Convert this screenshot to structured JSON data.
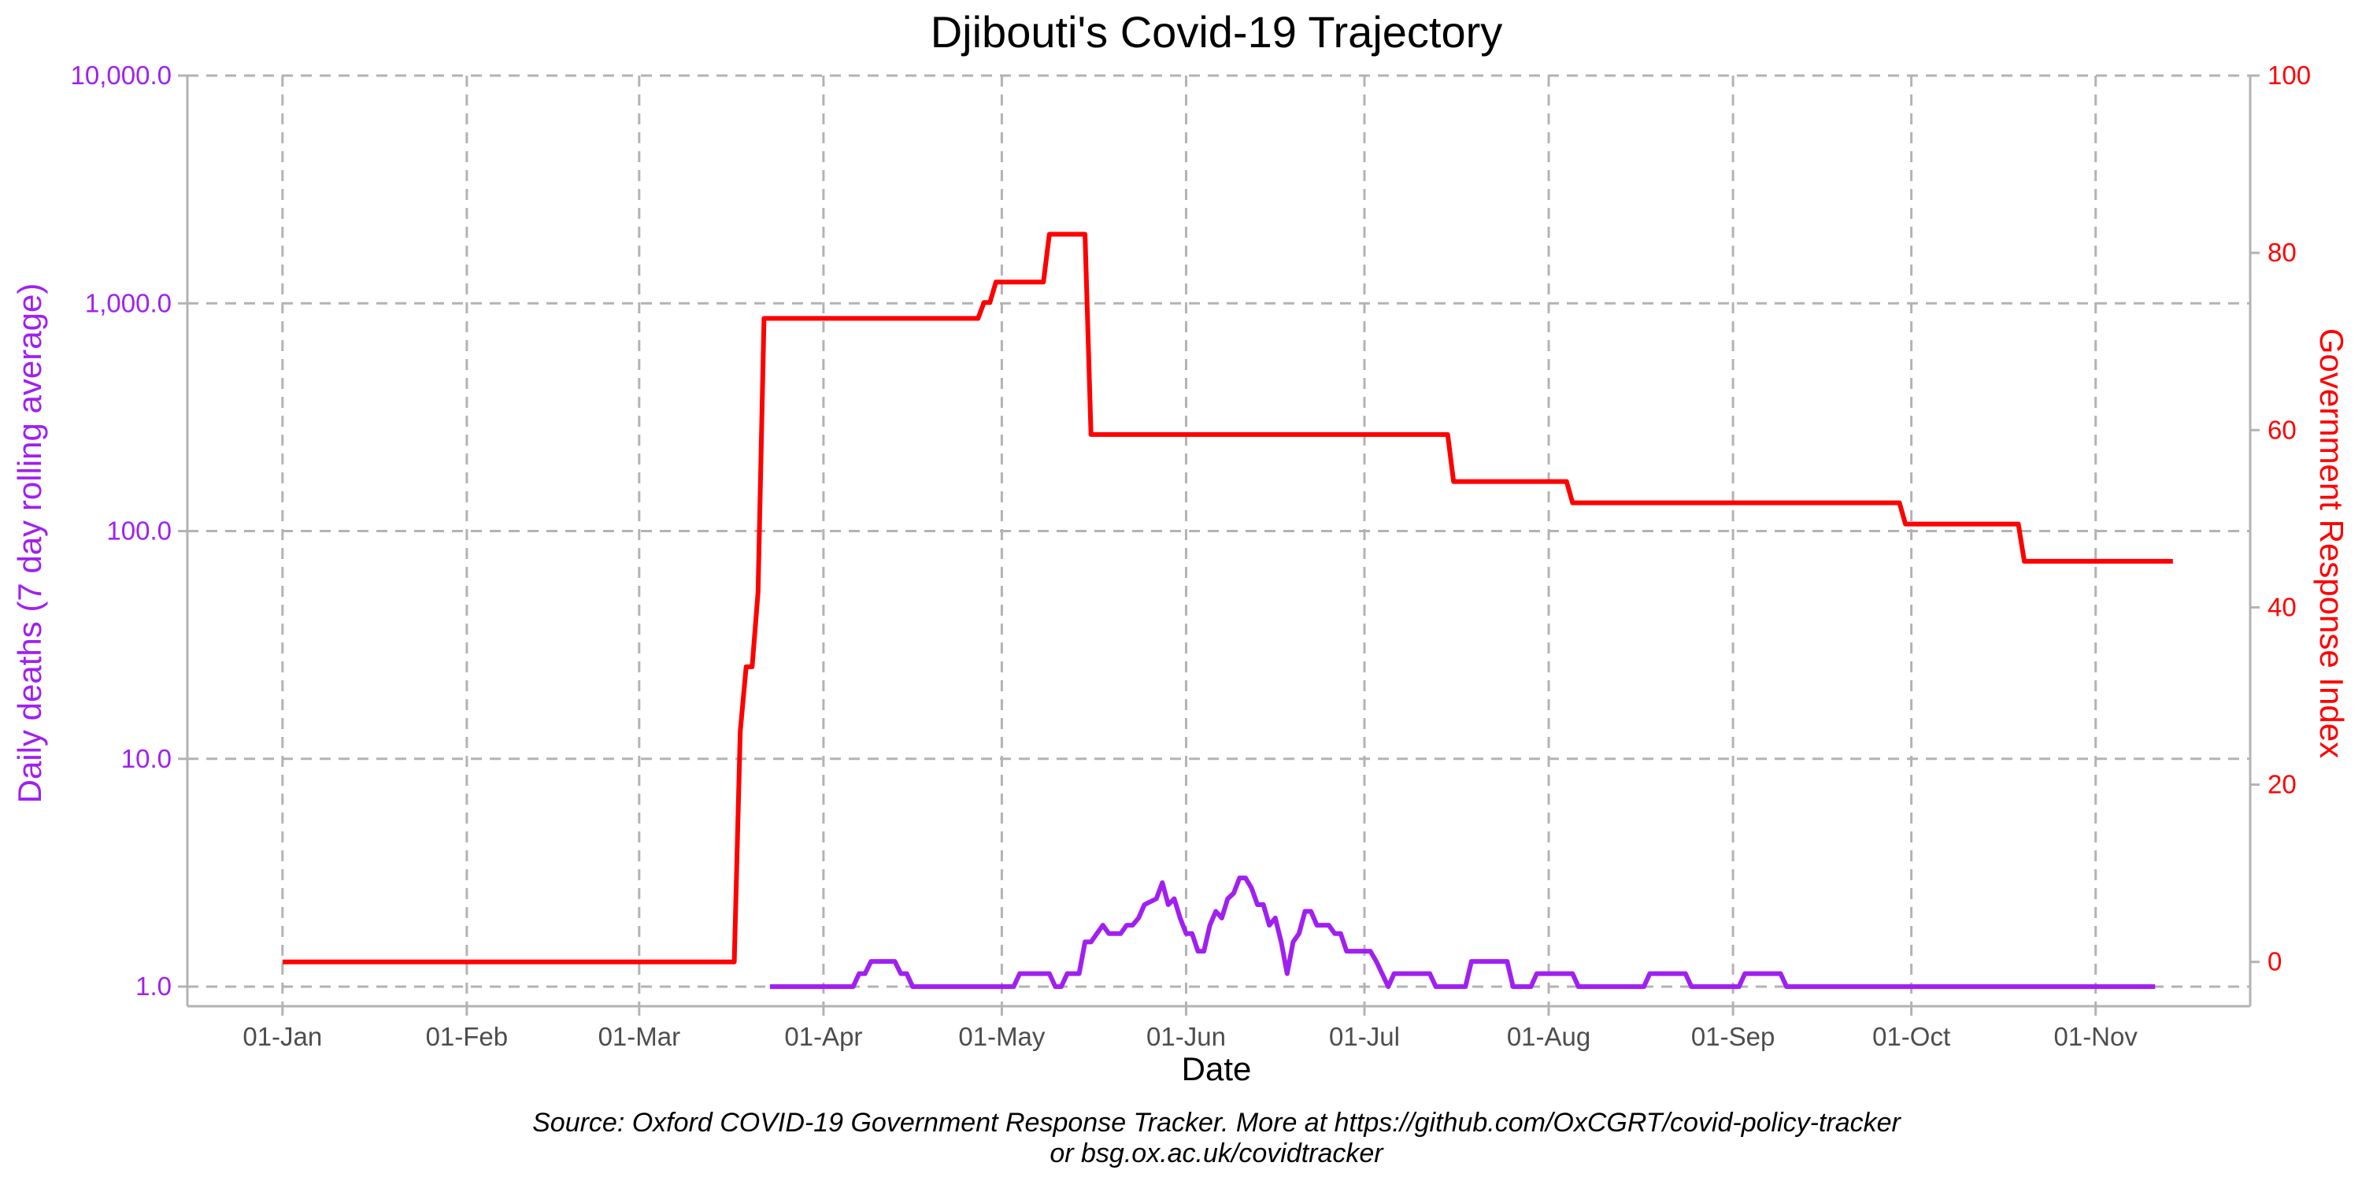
{
  "chart_data": {
    "type": "line",
    "title": "Djibouti's Covid-19 Trajectory",
    "xlabel": "Date",
    "ylabel_left": "Daily deaths (7 day rolling average)",
    "ylabel_right": "Government Response Index",
    "caption_lines": [
      "Source: Oxford COVID-19 Government Response Tracker. More at https://github.com/OxCGRT/covid-policy-tracker",
      "or bsg.ox.ac.uk/covidtracker"
    ],
    "x_ticks": [
      {
        "date": "2020-01-01",
        "label": "01-Jan"
      },
      {
        "date": "2020-02-01",
        "label": "01-Feb"
      },
      {
        "date": "2020-03-01",
        "label": "01-Mar"
      },
      {
        "date": "2020-04-01",
        "label": "01-Apr"
      },
      {
        "date": "2020-05-01",
        "label": "01-May"
      },
      {
        "date": "2020-06-01",
        "label": "01-Jun"
      },
      {
        "date": "2020-07-01",
        "label": "01-Jul"
      },
      {
        "date": "2020-08-01",
        "label": "01-Aug"
      },
      {
        "date": "2020-09-01",
        "label": "01-Sep"
      },
      {
        "date": "2020-10-01",
        "label": "01-Oct"
      },
      {
        "date": "2020-11-01",
        "label": "01-Nov"
      }
    ],
    "xlim": [
      "2019-12-16",
      "2020-11-27"
    ],
    "y_left": {
      "scale": "log10",
      "lim": [
        0.82,
        10000
      ],
      "ticks": [
        {
          "value": 1,
          "label": "1.0"
        },
        {
          "value": 10,
          "label": "10.0"
        },
        {
          "value": 100,
          "label": "100.0"
        },
        {
          "value": 1000,
          "label": "1,000.0"
        },
        {
          "value": 10000,
          "label": "10,000.0"
        }
      ]
    },
    "y_right": {
      "scale": "linear",
      "lim": [
        -5,
        100
      ],
      "ticks": [
        {
          "value": 0,
          "label": "0"
        },
        {
          "value": 20,
          "label": "20"
        },
        {
          "value": 40,
          "label": "40"
        },
        {
          "value": 60,
          "label": "60"
        },
        {
          "value": 80,
          "label": "80"
        },
        {
          "value": 100,
          "label": "100"
        }
      ]
    },
    "grid": true,
    "series": [
      {
        "key": "deaths",
        "axis": "left",
        "color": "#a020f0",
        "points": [
          [
            "2020-03-23",
            1.0
          ],
          [
            "2020-04-06",
            1.0
          ],
          [
            "2020-04-07",
            1.14
          ],
          [
            "2020-04-08",
            1.14
          ],
          [
            "2020-04-09",
            1.29
          ],
          [
            "2020-04-13",
            1.29
          ],
          [
            "2020-04-14",
            1.14
          ],
          [
            "2020-04-15",
            1.14
          ],
          [
            "2020-04-16",
            1.0
          ],
          [
            "2020-05-03",
            1.0
          ],
          [
            "2020-05-04",
            1.14
          ],
          [
            "2020-05-09",
            1.14
          ],
          [
            "2020-05-10",
            1.0
          ],
          [
            "2020-05-11",
            1.0
          ],
          [
            "2020-05-12",
            1.14
          ],
          [
            "2020-05-14",
            1.14
          ],
          [
            "2020-05-15",
            1.57
          ],
          [
            "2020-05-16",
            1.57
          ],
          [
            "2020-05-17",
            1.71
          ],
          [
            "2020-05-18",
            1.86
          ],
          [
            "2020-05-19",
            1.71
          ],
          [
            "2020-05-21",
            1.71
          ],
          [
            "2020-05-22",
            1.86
          ],
          [
            "2020-05-23",
            1.86
          ],
          [
            "2020-05-24",
            2.0
          ],
          [
            "2020-05-25",
            2.29
          ],
          [
            "2020-05-27",
            2.43
          ],
          [
            "2020-05-28",
            2.86
          ],
          [
            "2020-05-29",
            2.29
          ],
          [
            "2020-05-30",
            2.43
          ],
          [
            "2020-05-31",
            2.0
          ],
          [
            "2020-06-01",
            1.71
          ],
          [
            "2020-06-02",
            1.71
          ],
          [
            "2020-06-03",
            1.43
          ],
          [
            "2020-06-04",
            1.43
          ],
          [
            "2020-06-05",
            1.86
          ],
          [
            "2020-06-06",
            2.14
          ],
          [
            "2020-06-07",
            2.0
          ],
          [
            "2020-06-08",
            2.43
          ],
          [
            "2020-06-09",
            2.57
          ],
          [
            "2020-06-10",
            3.0
          ],
          [
            "2020-06-11",
            3.0
          ],
          [
            "2020-06-12",
            2.71
          ],
          [
            "2020-06-13",
            2.29
          ],
          [
            "2020-06-14",
            2.29
          ],
          [
            "2020-06-15",
            1.86
          ],
          [
            "2020-06-16",
            2.0
          ],
          [
            "2020-06-17",
            1.57
          ],
          [
            "2020-06-18",
            1.14
          ],
          [
            "2020-06-19",
            1.57
          ],
          [
            "2020-06-20",
            1.71
          ],
          [
            "2020-06-21",
            2.14
          ],
          [
            "2020-06-22",
            2.14
          ],
          [
            "2020-06-23",
            1.86
          ],
          [
            "2020-06-25",
            1.86
          ],
          [
            "2020-06-26",
            1.71
          ],
          [
            "2020-06-27",
            1.71
          ],
          [
            "2020-06-28",
            1.43
          ],
          [
            "2020-07-02",
            1.43
          ],
          [
            "2020-07-03",
            1.29
          ],
          [
            "2020-07-05",
            1.0
          ],
          [
            "2020-07-06",
            1.14
          ],
          [
            "2020-07-12",
            1.14
          ],
          [
            "2020-07-13",
            1.0
          ],
          [
            "2020-07-18",
            1.0
          ],
          [
            "2020-07-19",
            1.29
          ],
          [
            "2020-07-25",
            1.29
          ],
          [
            "2020-07-26",
            1.0
          ],
          [
            "2020-07-29",
            1.0
          ],
          [
            "2020-07-30",
            1.14
          ],
          [
            "2020-08-05",
            1.14
          ],
          [
            "2020-08-06",
            1.0
          ],
          [
            "2020-08-17",
            1.0
          ],
          [
            "2020-08-18",
            1.14
          ],
          [
            "2020-08-24",
            1.14
          ],
          [
            "2020-08-25",
            1.0
          ],
          [
            "2020-09-02",
            1.0
          ],
          [
            "2020-09-03",
            1.14
          ],
          [
            "2020-09-09",
            1.14
          ],
          [
            "2020-09-10",
            1.0
          ],
          [
            "2020-11-11",
            1.0
          ]
        ]
      },
      {
        "key": "response_index",
        "axis": "right",
        "color": "#ff0000",
        "points": [
          [
            "2020-01-01",
            0
          ],
          [
            "2020-03-17",
            0
          ],
          [
            "2020-03-18",
            26
          ],
          [
            "2020-03-19",
            33.3
          ],
          [
            "2020-03-20",
            33.3
          ],
          [
            "2020-03-21",
            41.7
          ],
          [
            "2020-03-22",
            72.6
          ],
          [
            "2020-04-27",
            72.6
          ],
          [
            "2020-04-28",
            74.4
          ],
          [
            "2020-04-29",
            74.4
          ],
          [
            "2020-04-30",
            76.7
          ],
          [
            "2020-05-08",
            76.7
          ],
          [
            "2020-05-09",
            82.1
          ],
          [
            "2020-05-15",
            82.1
          ],
          [
            "2020-05-16",
            59.5
          ],
          [
            "2020-07-15",
            59.5
          ],
          [
            "2020-07-16",
            54.2
          ],
          [
            "2020-08-04",
            54.2
          ],
          [
            "2020-08-05",
            51.8
          ],
          [
            "2020-09-29",
            51.8
          ],
          [
            "2020-09-30",
            49.4
          ],
          [
            "2020-10-19",
            49.4
          ],
          [
            "2020-10-20",
            45.2
          ],
          [
            "2020-11-14",
            45.2
          ]
        ]
      }
    ]
  }
}
